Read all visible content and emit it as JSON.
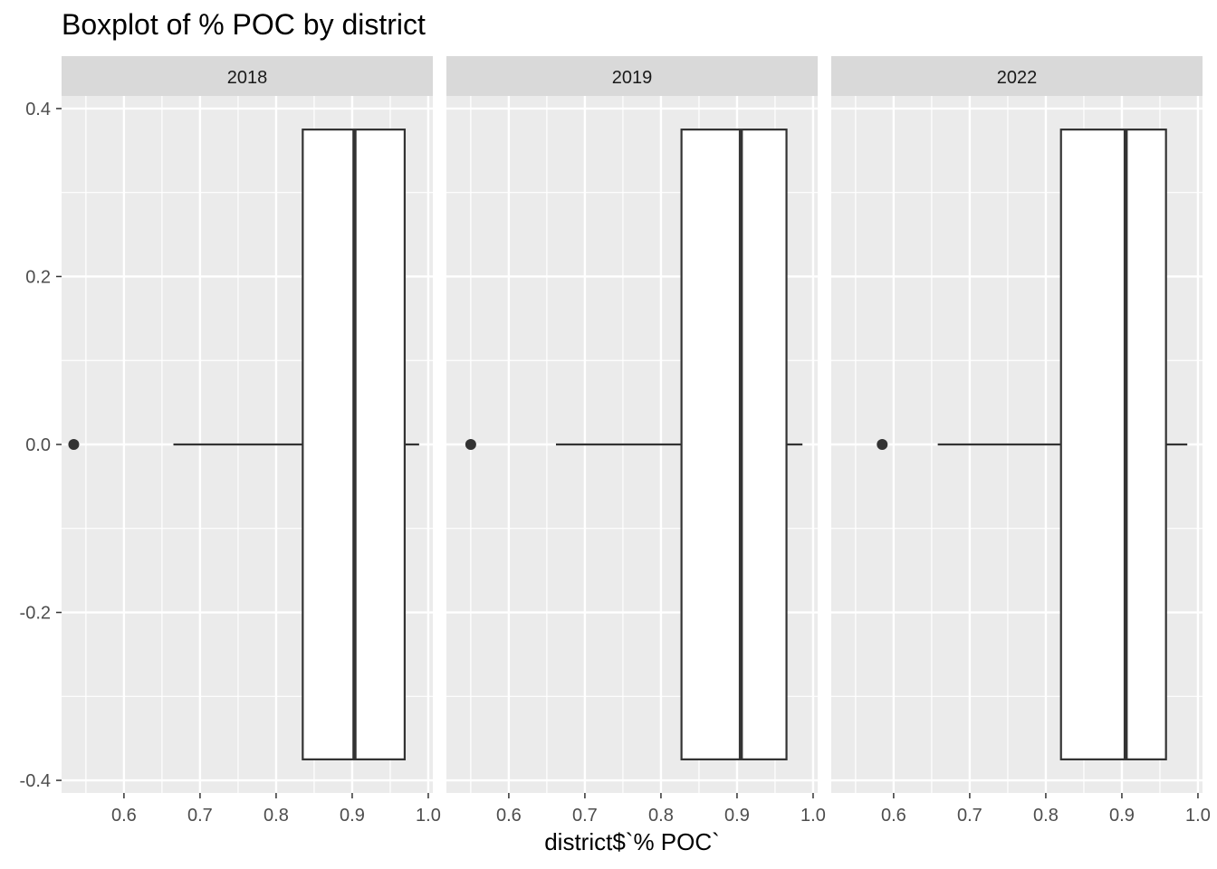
{
  "chart_data": {
    "type": "boxplot",
    "title": "Boxplot of % POC by district",
    "xlabel": "district$`% POC`",
    "ylabel": "",
    "xlim": [
      0.518,
      1.006
    ],
    "ylim": [
      -0.415,
      0.415
    ],
    "x_ticks": [
      "0.6",
      "0.7",
      "0.8",
      "0.9",
      "1.0"
    ],
    "x_tick_values": [
      0.6,
      0.7,
      0.8,
      0.9,
      1.0
    ],
    "y_ticks": [
      "-0.4",
      "-0.2",
      "0.0",
      "0.2",
      "0.4"
    ],
    "y_tick_values": [
      -0.4,
      -0.2,
      0.0,
      0.2,
      0.4
    ],
    "grid": true,
    "box_half_height": 0.375,
    "facets": [
      {
        "label": "2018",
        "whisker_low": 0.665,
        "q1": 0.835,
        "median": 0.903,
        "q3": 0.969,
        "whisker_high": 0.988,
        "outliers": [
          0.534
        ]
      },
      {
        "label": "2019",
        "whisker_low": 0.662,
        "q1": 0.827,
        "median": 0.905,
        "q3": 0.965,
        "whisker_high": 0.986,
        "outliers": [
          0.55
        ]
      },
      {
        "label": "2022",
        "whisker_low": 0.658,
        "q1": 0.82,
        "median": 0.905,
        "q3": 0.958,
        "whisker_high": 0.986,
        "outliers": [
          0.585
        ]
      }
    ]
  }
}
